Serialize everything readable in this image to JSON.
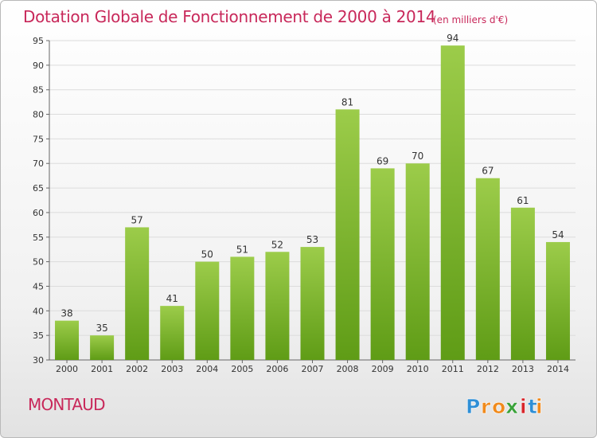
{
  "title": "Dotation Globale de Fonctionnement de 2000 à 2014",
  "subtitle": "(en milliers d'€)",
  "town": "MONTAUD",
  "logo": {
    "text": "Proxiti",
    "letters": [
      "P",
      "r",
      "o",
      "x",
      "i",
      "t",
      "i"
    ],
    "colors": [
      "#2f8fd6",
      "#f08a1c",
      "#f08a1c",
      "#3aa23a",
      "#d8262b",
      "#2f8fd6",
      "#f08a1c"
    ]
  },
  "colors": {
    "bar_light": "#9ccc4a",
    "bar_dark": "#5f9c16",
    "title": "#c8285a"
  },
  "chart_data": {
    "type": "bar",
    "categories": [
      "2000",
      "2001",
      "2002",
      "2003",
      "2004",
      "2005",
      "2006",
      "2007",
      "2008",
      "2009",
      "2010",
      "2011",
      "2012",
      "2013",
      "2014"
    ],
    "values": [
      38,
      35,
      57,
      41,
      50,
      51,
      52,
      53,
      81,
      69,
      70,
      94,
      67,
      61,
      54
    ],
    "ylim": [
      30,
      95
    ],
    "yticks": [
      30,
      35,
      40,
      45,
      50,
      55,
      60,
      65,
      70,
      75,
      80,
      85,
      90,
      95
    ],
    "grid": true,
    "title": "Dotation Globale de Fonctionnement de 2000 à 2014",
    "xlabel": "",
    "ylabel": ""
  }
}
